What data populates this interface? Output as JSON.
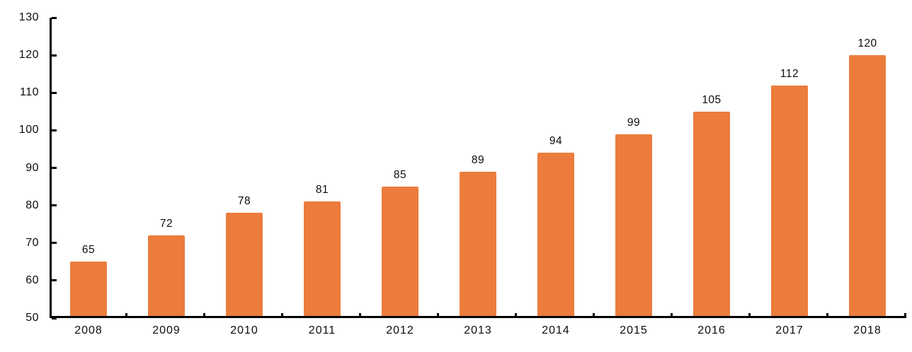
{
  "chart_data": {
    "type": "bar",
    "categories": [
      "2008",
      "2009",
      "2010",
      "2011",
      "2012",
      "2013",
      "2014",
      "2015",
      "2016",
      "2017",
      "2018"
    ],
    "values": [
      65,
      72,
      78,
      81,
      85,
      89,
      94,
      99,
      105,
      112,
      120
    ],
    "yticks": [
      50,
      60,
      70,
      80,
      90,
      100,
      110,
      120,
      130
    ],
    "ylim": [
      50,
      130
    ],
    "grid": false,
    "legend": false,
    "data_labels": true,
    "colors": {
      "bar": "#EB7C3C",
      "axis": "#000000",
      "text": "#0D0D0D",
      "background": "#FFFFFF"
    }
  }
}
